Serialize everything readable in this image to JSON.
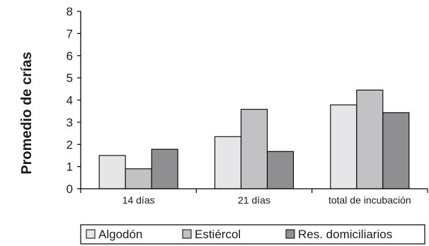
{
  "chart_data": {
    "type": "bar",
    "title": "",
    "xlabel": "",
    "ylabel": "Promedio de crías",
    "ylim": [
      0,
      8
    ],
    "yticks": [
      0,
      1,
      2,
      3,
      4,
      5,
      6,
      7,
      8
    ],
    "grid": false,
    "legend_position": "bottom",
    "categories": [
      "14 días",
      "21 días",
      "total de incubación"
    ],
    "series": [
      {
        "name": "Algodón",
        "values": [
          1.5,
          2.35,
          3.78
        ],
        "color": "#e6e6e8"
      },
      {
        "name": "Estiércol",
        "values": [
          0.9,
          3.58,
          4.45
        ],
        "color": "#c2c2c4"
      },
      {
        "name": "Res. domiciliarios",
        "values": [
          1.78,
          1.68,
          3.43
        ],
        "color": "#8f8f91"
      }
    ]
  }
}
